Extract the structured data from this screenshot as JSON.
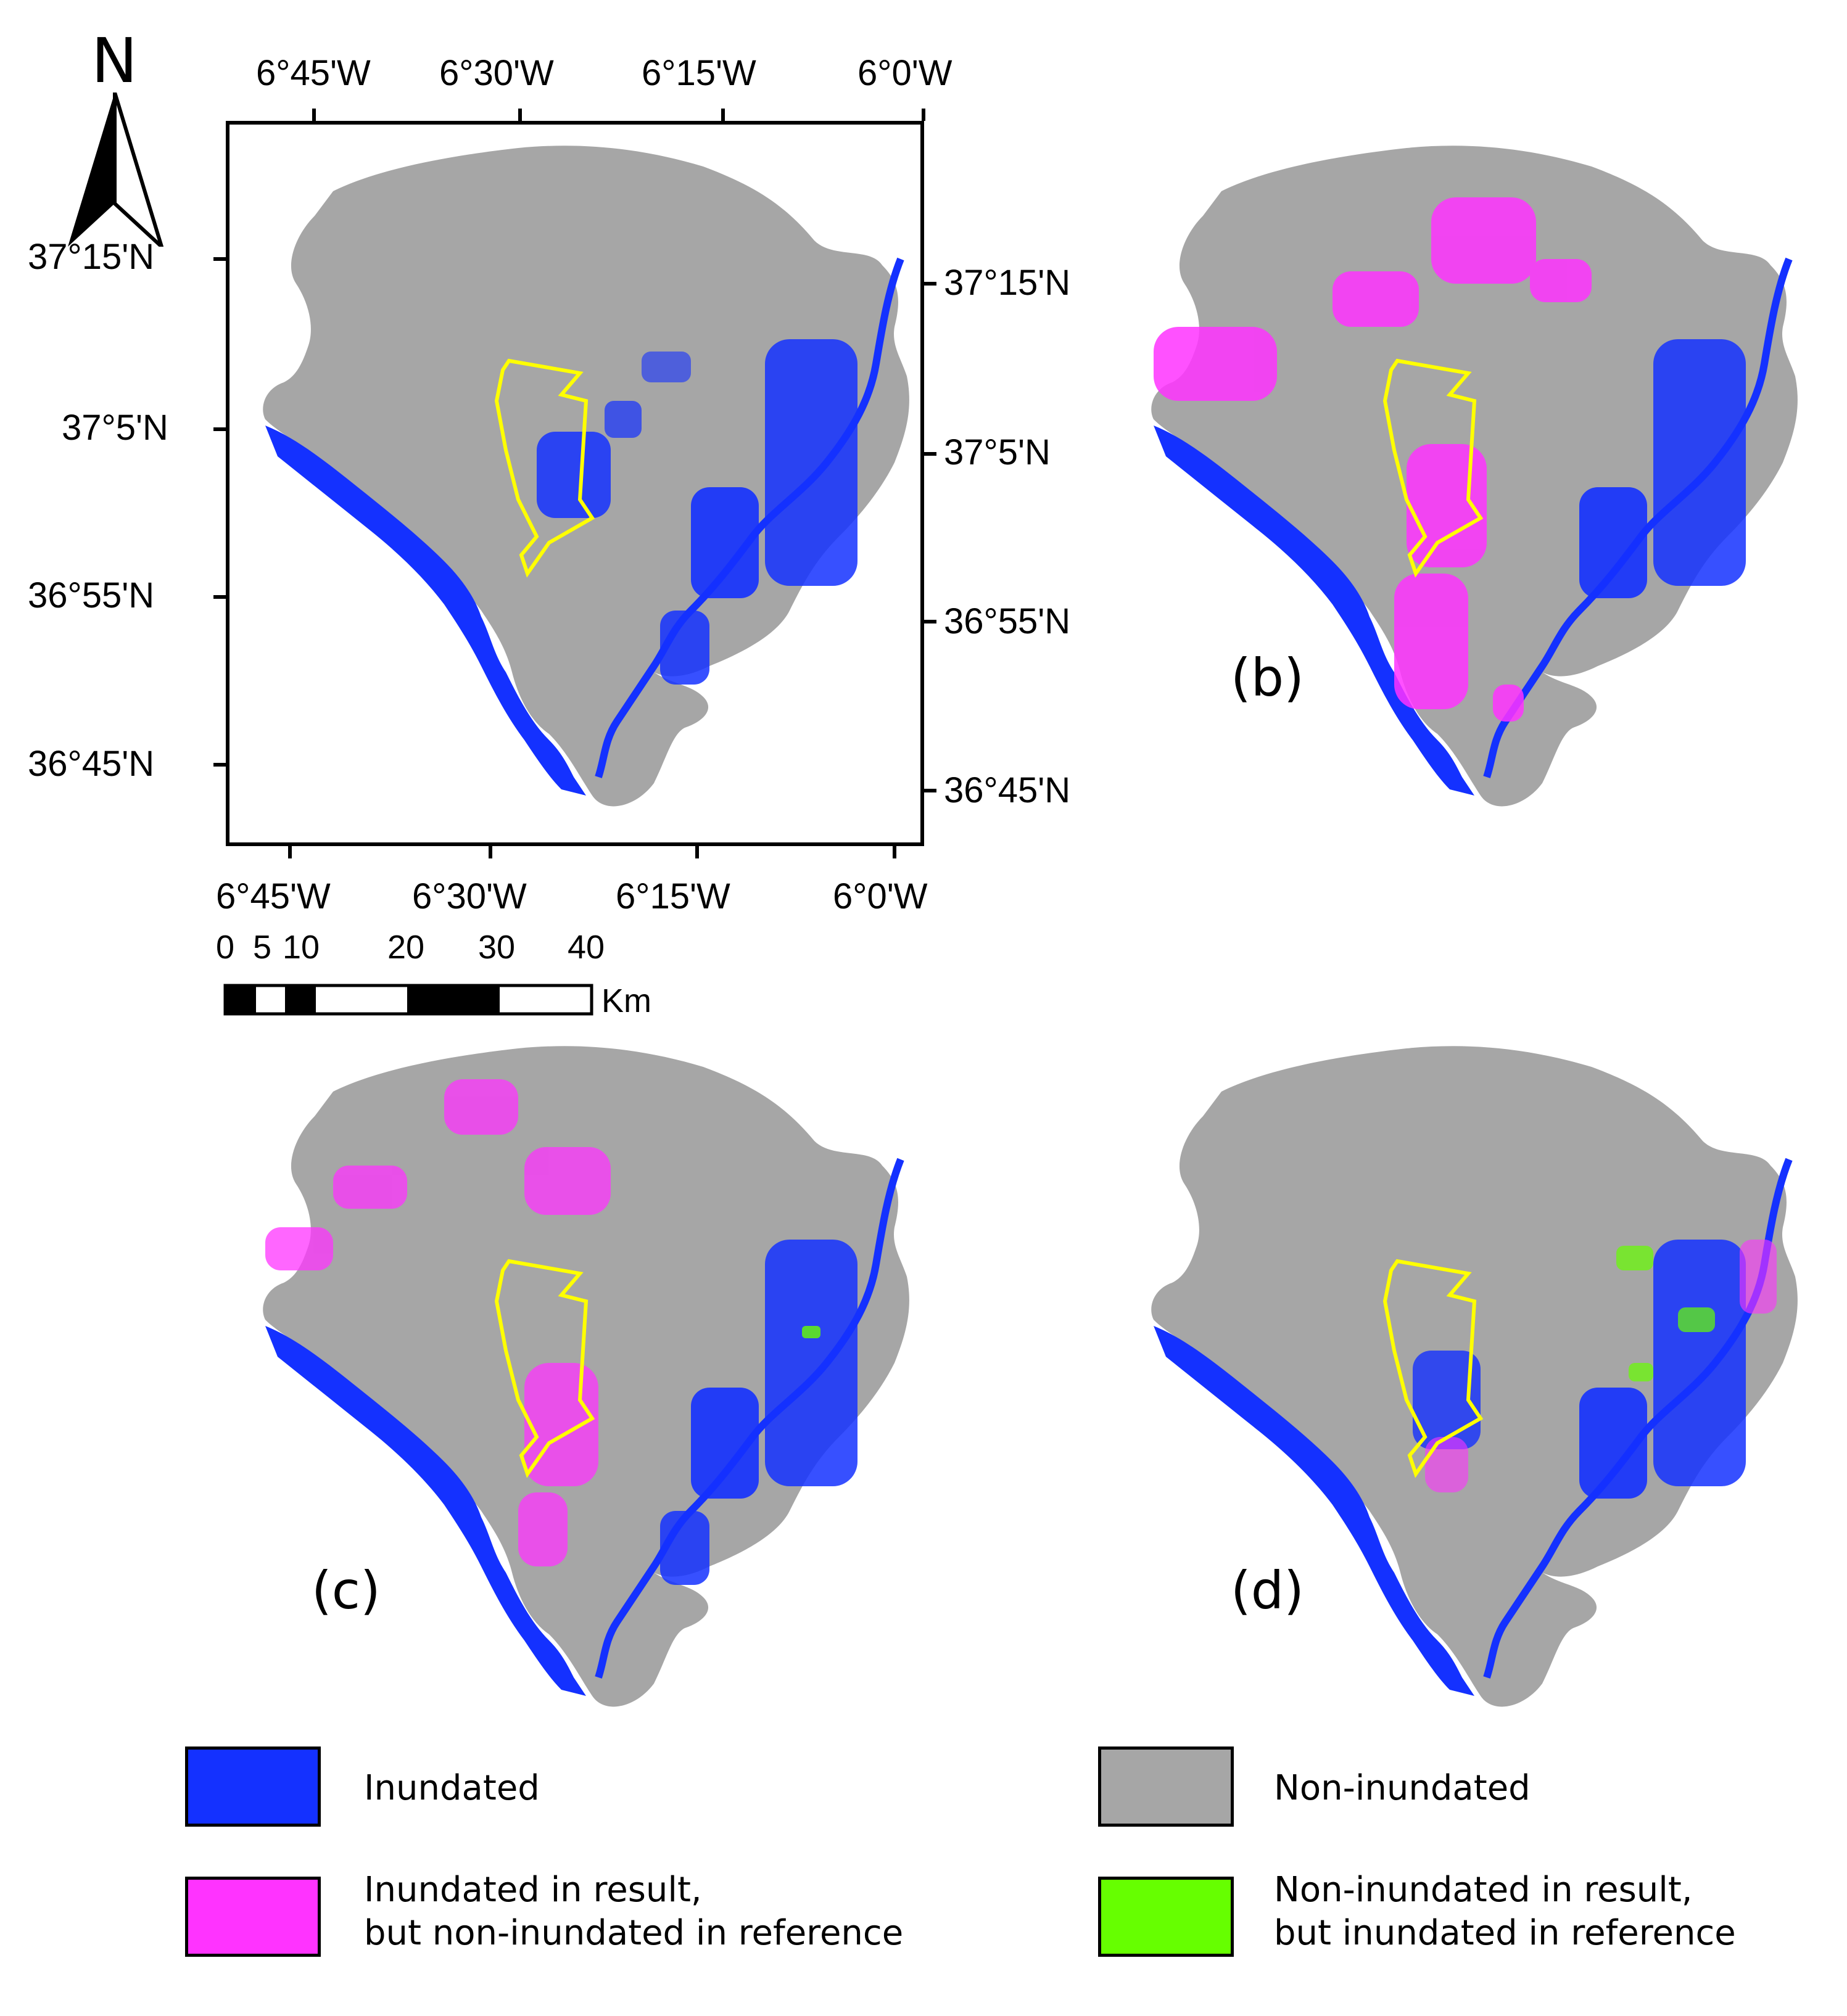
{
  "north_arrow": {
    "label": "N"
  },
  "panel_a": {
    "top_ticks": [
      "6°45'W",
      "6°30'W",
      "6°15'W",
      "6°0'W"
    ],
    "bottom_ticks": [
      "6°45'W",
      "6°30'W",
      "6°15'W",
      "6°0'W"
    ],
    "left_ticks": [
      "37°15'N",
      "37°5'N",
      "36°55'N",
      "36°45'N"
    ],
    "right_ticks": [
      "37°15'N",
      "37°5'N",
      "36°55'N",
      "36°45'N"
    ]
  },
  "scale_bar": {
    "labels": [
      "0",
      "5",
      "10",
      "20",
      "30",
      "40"
    ],
    "unit": "Km"
  },
  "panels": {
    "b": "(b)",
    "c": "(c)",
    "d": "(d)"
  },
  "legend": {
    "inundated": {
      "label": "Inundated",
      "color": "#1431ff"
    },
    "non_inundated": {
      "label": "Non-inundated",
      "color": "#a6a6a6"
    },
    "false_pos": {
      "line1": "Inundated in result,",
      "line2": "but non-inundated in reference",
      "color": "#ff33ff"
    },
    "false_neg": {
      "line1": "Non-inundated in result,",
      "line2": "but inundated in reference",
      "color": "#66ff00"
    }
  },
  "study_area_outline_color": "#ffff00"
}
